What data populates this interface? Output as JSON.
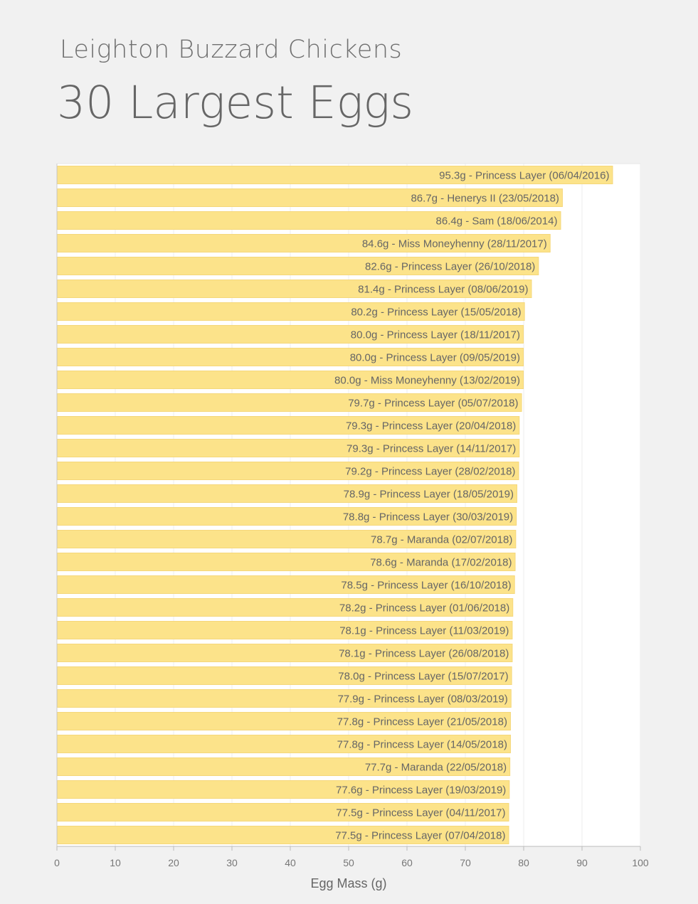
{
  "chart_data": {
    "type": "bar",
    "orientation": "horizontal",
    "subtitle": "Leighton Buzzard Chickens",
    "title": "30 Largest Eggs",
    "xlabel": "Egg Mass (g)",
    "ylabel": "",
    "xlim": [
      0,
      100
    ],
    "xticks": [
      0,
      10,
      20,
      30,
      40,
      50,
      60,
      70,
      80,
      90,
      100
    ],
    "grid": true,
    "bar_color": "#fce38a",
    "bar_border_color": "#f5d77a",
    "plot_background": "#ffffff",
    "bars": [
      {
        "value": 95.3,
        "label": "95.3g - Princess Layer (06/04/2016)"
      },
      {
        "value": 86.7,
        "label": "86.7g - Henerys II (23/05/2018)"
      },
      {
        "value": 86.4,
        "label": "86.4g - Sam (18/06/2014)"
      },
      {
        "value": 84.6,
        "label": "84.6g - Miss Moneyhenny (28/11/2017)"
      },
      {
        "value": 82.6,
        "label": "82.6g - Princess Layer (26/10/2018)"
      },
      {
        "value": 81.4,
        "label": "81.4g - Princess Layer (08/06/2019)"
      },
      {
        "value": 80.2,
        "label": "80.2g - Princess Layer (15/05/2018)"
      },
      {
        "value": 80.0,
        "label": "80.0g - Princess Layer (18/11/2017)"
      },
      {
        "value": 80.0,
        "label": "80.0g - Princess Layer (09/05/2019)"
      },
      {
        "value": 80.0,
        "label": "80.0g - Miss Moneyhenny (13/02/2019)"
      },
      {
        "value": 79.7,
        "label": "79.7g - Princess Layer (05/07/2018)"
      },
      {
        "value": 79.3,
        "label": "79.3g - Princess Layer (20/04/2018)"
      },
      {
        "value": 79.3,
        "label": "79.3g - Princess Layer (14/11/2017)"
      },
      {
        "value": 79.2,
        "label": "79.2g - Princess Layer (28/02/2018)"
      },
      {
        "value": 78.9,
        "label": "78.9g - Princess Layer (18/05/2019)"
      },
      {
        "value": 78.8,
        "label": "78.8g - Princess Layer (30/03/2019)"
      },
      {
        "value": 78.7,
        "label": "78.7g - Maranda (02/07/2018)"
      },
      {
        "value": 78.6,
        "label": "78.6g - Maranda (17/02/2018)"
      },
      {
        "value": 78.5,
        "label": "78.5g - Princess Layer (16/10/2018)"
      },
      {
        "value": 78.2,
        "label": "78.2g - Princess Layer (01/06/2018)"
      },
      {
        "value": 78.1,
        "label": "78.1g - Princess Layer (11/03/2019)"
      },
      {
        "value": 78.1,
        "label": "78.1g - Princess Layer (26/08/2018)"
      },
      {
        "value": 78.0,
        "label": "78.0g - Princess Layer (15/07/2017)"
      },
      {
        "value": 77.9,
        "label": "77.9g - Princess Layer (08/03/2019)"
      },
      {
        "value": 77.8,
        "label": "77.8g - Princess Layer (21/05/2018)"
      },
      {
        "value": 77.8,
        "label": "77.8g - Princess Layer (14/05/2018)"
      },
      {
        "value": 77.7,
        "label": "77.7g - Maranda (22/05/2018)"
      },
      {
        "value": 77.6,
        "label": "77.6g - Princess Layer (19/03/2019)"
      },
      {
        "value": 77.5,
        "label": "77.5g - Princess Layer (04/11/2017)"
      },
      {
        "value": 77.5,
        "label": "77.5g - Princess Layer (07/04/2018)"
      }
    ]
  }
}
